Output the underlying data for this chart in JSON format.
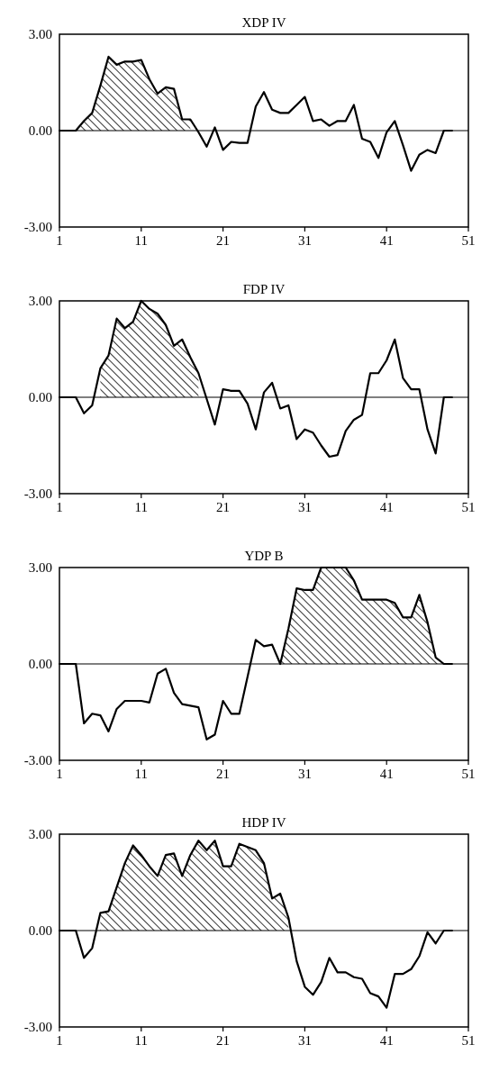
{
  "chart_data": [
    {
      "type": "line",
      "title": "XDP IV",
      "x": [
        1,
        2,
        3,
        4,
        5,
        6,
        7,
        8,
        9,
        10,
        11,
        12,
        13,
        14,
        15,
        16,
        17,
        18,
        19,
        20,
        21,
        22,
        23,
        24,
        25,
        26,
        27,
        28,
        29,
        30,
        31,
        32,
        33,
        34,
        35,
        36,
        37,
        38,
        39,
        40,
        41,
        42,
        43,
        44,
        45,
        46,
        47,
        48,
        49
      ],
      "series": [
        {
          "type": "area",
          "color": "#000000",
          "x": [
            3,
            4,
            5,
            6,
            7,
            8,
            9,
            10,
            11,
            12,
            13,
            14,
            15,
            16,
            17
          ],
          "values": [
            0,
            0.3,
            0.55,
            1.4,
            2.3,
            2.05,
            2.15,
            2.15,
            2.2,
            1.6,
            1.15,
            1.35,
            1.3,
            0.35,
            0.35
          ]
        },
        {
          "color": "#000000",
          "values": [
            0,
            0,
            0,
            0.3,
            0.55,
            1.4,
            2.3,
            2.05,
            2.15,
            2.15,
            2.2,
            1.6,
            1.15,
            1.35,
            1.3,
            0.35,
            0.35,
            -0.05,
            -0.5,
            0.1,
            -0.6,
            -0.35,
            -0.38,
            -0.38,
            0.75,
            1.2,
            0.65,
            0.55,
            0.55,
            0.8,
            1.05,
            0.3,
            0.35,
            0.15,
            0.3,
            0.3,
            0.8,
            -0.25,
            -0.35,
            -0.85,
            -0.05,
            0.3,
            -0.45,
            -1.25,
            -0.75,
            -0.6,
            -0.7,
            0,
            0
          ]
        }
      ],
      "xlim": [
        1,
        51
      ],
      "xticks": [
        1,
        11,
        21,
        31,
        41,
        51
      ],
      "ylim": [
        -3,
        3
      ],
      "yticks": [
        {
          "value": -3,
          "label": "-3.00"
        },
        {
          "value": 0,
          "label": "0.00"
        },
        {
          "value": 3,
          "label": "3.00"
        }
      ],
      "ref_lines": [
        {
          "axis": "y",
          "value": 0,
          "color": "#000000"
        }
      ]
    },
    {
      "type": "line",
      "title": "FDP IV",
      "x": [
        1,
        2,
        3,
        4,
        5,
        6,
        7,
        8,
        9,
        10,
        11,
        12,
        13,
        14,
        15,
        16,
        17,
        18,
        19,
        20,
        21,
        22,
        23,
        24,
        25,
        26,
        27,
        28,
        29,
        30,
        31,
        32,
        33,
        34,
        35,
        36,
        37,
        38,
        39,
        40,
        41,
        42,
        43,
        44,
        45,
        46,
        47,
        48,
        49
      ],
      "series": [
        {
          "type": "area",
          "color": "#000000",
          "x": [
            6,
            7,
            8,
            9,
            10,
            11,
            12,
            13,
            14,
            15,
            16,
            17,
            18
          ],
          "values": [
            0.9,
            1.3,
            2.45,
            2.15,
            2.35,
            3.0,
            2.75,
            2.6,
            2.25,
            1.6,
            1.8,
            1.25,
            0.75
          ]
        },
        {
          "color": "#000000",
          "values": [
            0,
            0,
            0,
            -0.5,
            -0.25,
            0.9,
            1.3,
            2.45,
            2.15,
            2.35,
            3.0,
            2.75,
            2.6,
            2.25,
            1.6,
            1.8,
            1.25,
            0.75,
            -0.05,
            -0.85,
            0.25,
            0.2,
            0.2,
            -0.2,
            -1.0,
            0.15,
            0.45,
            -0.35,
            -0.25,
            -1.3,
            -1.0,
            -1.1,
            -1.5,
            -1.85,
            -1.8,
            -1.05,
            -0.7,
            -0.55,
            0.75,
            0.75,
            1.15,
            1.8,
            0.6,
            0.25,
            0.25,
            -1.0,
            -1.75,
            0,
            0
          ]
        }
      ],
      "xlim": [
        1,
        51
      ],
      "xticks": [
        1,
        11,
        21,
        31,
        41,
        51
      ],
      "ylim": [
        -3,
        3
      ],
      "yticks": [
        {
          "value": -3,
          "label": "-3.00"
        },
        {
          "value": 0,
          "label": "0.00"
        },
        {
          "value": 3,
          "label": "3.00"
        }
      ],
      "ref_lines": [
        {
          "axis": "y",
          "value": 0,
          "color": "#000000"
        }
      ]
    },
    {
      "type": "line",
      "title": "YDP B",
      "x": [
        1,
        2,
        3,
        4,
        5,
        6,
        7,
        8,
        9,
        10,
        11,
        12,
        13,
        14,
        15,
        16,
        17,
        18,
        19,
        20,
        21,
        22,
        23,
        24,
        25,
        26,
        27,
        28,
        29,
        30,
        31,
        32,
        33,
        34,
        35,
        36,
        37,
        38,
        39,
        40,
        41,
        42,
        43,
        44,
        45,
        46,
        47,
        48,
        49
      ],
      "series": [
        {
          "type": "area",
          "color": "#000000",
          "x": [
            28,
            29,
            30,
            31,
            32,
            33,
            34,
            35,
            36,
            37,
            38,
            39,
            40,
            41,
            42,
            43,
            44,
            45,
            46,
            47,
            48
          ],
          "values": [
            0,
            1.1,
            2.35,
            2.3,
            2.3,
            3.0,
            3.0,
            3.0,
            3.0,
            2.6,
            2.0,
            2.0,
            2.0,
            2.0,
            1.9,
            1.45,
            1.45,
            2.15,
            1.3,
            0.2,
            0
          ]
        },
        {
          "color": "#000000",
          "values": [
            0,
            0,
            0,
            -1.85,
            -1.55,
            -1.6,
            -2.1,
            -1.4,
            -1.15,
            -1.15,
            -1.15,
            -1.2,
            -0.3,
            -0.15,
            -0.9,
            -1.25,
            -1.3,
            -1.35,
            -2.35,
            -2.2,
            -1.15,
            -1.55,
            -1.55,
            -0.4,
            0.75,
            0.55,
            0.6,
            0,
            1.1,
            2.35,
            2.3,
            2.3,
            3.0,
            3.0,
            3.0,
            3.0,
            2.6,
            2.0,
            2.0,
            2.0,
            2.0,
            1.9,
            1.45,
            1.45,
            2.15,
            1.3,
            0.2,
            0,
            0
          ]
        }
      ],
      "xlim": [
        1,
        51
      ],
      "xticks": [
        1,
        11,
        21,
        31,
        41,
        51
      ],
      "ylim": [
        -3,
        3
      ],
      "yticks": [
        {
          "value": -3,
          "label": "-3.00"
        },
        {
          "value": 0,
          "label": "0.00"
        },
        {
          "value": 3,
          "label": "3.00"
        }
      ],
      "ref_lines": [
        {
          "axis": "y",
          "value": 0,
          "color": "#000000"
        }
      ]
    },
    {
      "type": "line",
      "title": "HDP IV",
      "x": [
        1,
        2,
        3,
        4,
        5,
        6,
        7,
        8,
        9,
        10,
        11,
        12,
        13,
        14,
        15,
        16,
        17,
        18,
        19,
        20,
        21,
        22,
        23,
        24,
        25,
        26,
        27,
        28,
        29,
        30,
        31,
        32,
        33,
        34,
        35,
        36,
        37,
        38,
        39,
        40,
        41,
        42,
        43,
        44,
        45,
        46,
        47,
        48,
        49
      ],
      "series": [
        {
          "type": "area",
          "color": "#000000",
          "x": [
            6,
            7,
            8,
            9,
            10,
            11,
            12,
            13,
            14,
            15,
            16,
            17,
            18,
            19,
            20,
            21,
            22,
            23,
            24,
            25,
            26,
            27,
            28,
            29
          ],
          "values": [
            0.55,
            0.6,
            1.35,
            2.1,
            2.65,
            2.35,
            2.0,
            1.7,
            2.35,
            2.4,
            1.7,
            2.35,
            2.8,
            2.5,
            2.8,
            2.0,
            2.0,
            2.7,
            2.6,
            2.5,
            2.1,
            1.0,
            1.15,
            0.4
          ]
        },
        {
          "color": "#000000",
          "values": [
            0,
            0,
            0,
            -0.85,
            -0.55,
            0.55,
            0.6,
            1.35,
            2.1,
            2.65,
            2.35,
            2.0,
            1.7,
            2.35,
            2.4,
            1.7,
            2.35,
            2.8,
            2.5,
            2.8,
            2.0,
            2.0,
            2.7,
            2.6,
            2.5,
            2.1,
            1.0,
            1.15,
            0.4,
            -0.95,
            -1.75,
            -2.0,
            -1.6,
            -0.85,
            -1.3,
            -1.3,
            -1.45,
            -1.5,
            -1.95,
            -2.05,
            -2.4,
            -1.35,
            -1.35,
            -1.2,
            -0.8,
            -0.05,
            -0.4,
            0,
            0
          ]
        }
      ],
      "xlim": [
        1,
        51
      ],
      "xticks": [
        1,
        11,
        21,
        31,
        41,
        51
      ],
      "ylim": [
        -3,
        3
      ],
      "yticks": [
        {
          "value": -3,
          "label": "-3.00"
        },
        {
          "value": 0,
          "label": "0.00"
        },
        {
          "value": 3,
          "label": "3.00"
        }
      ],
      "ref_lines": [
        {
          "axis": "y",
          "value": 0,
          "color": "#000000"
        }
      ]
    }
  ]
}
